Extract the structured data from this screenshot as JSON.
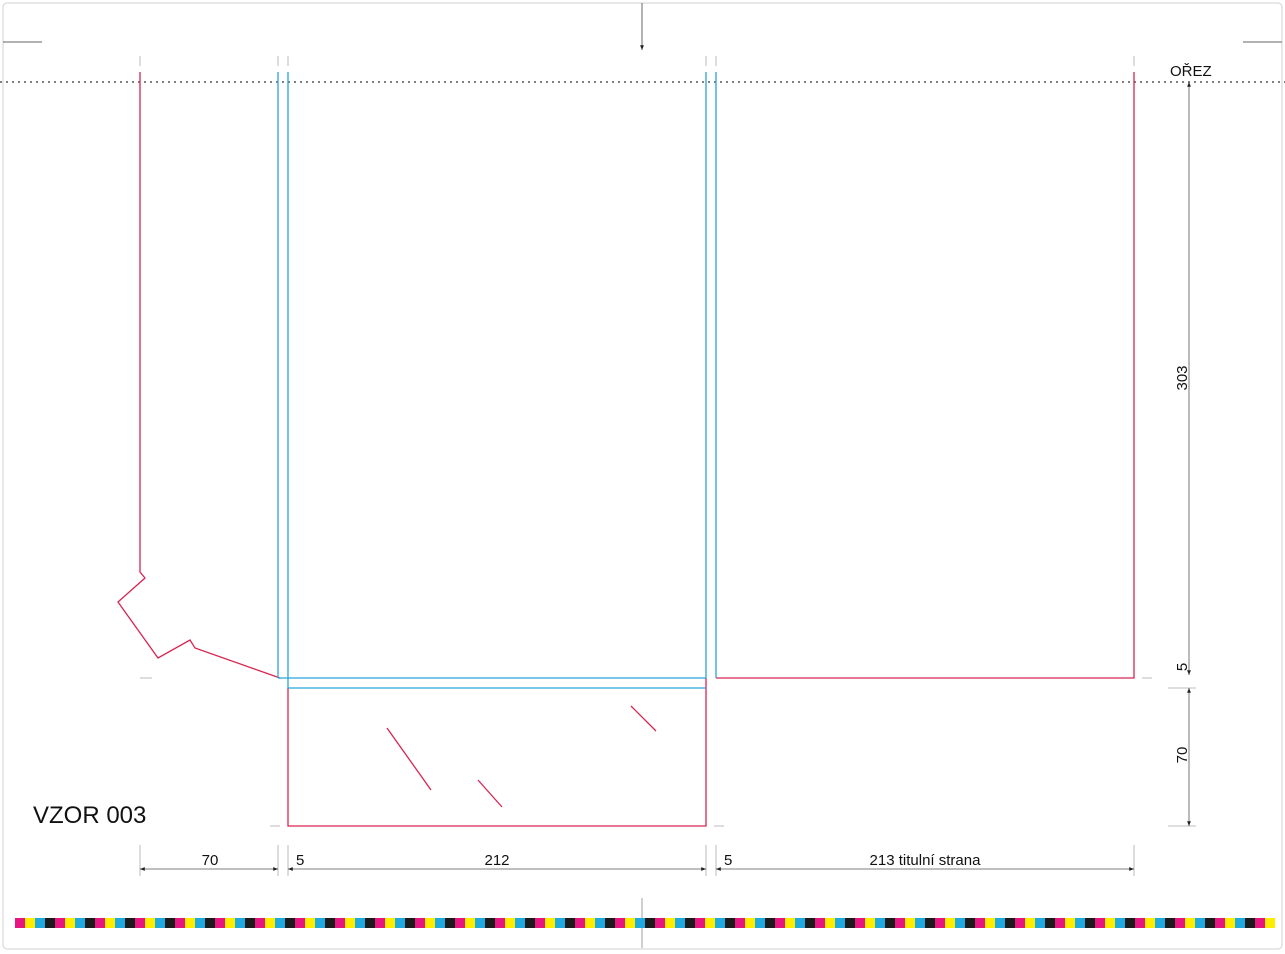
{
  "labels": {
    "trim": "OŘEZ",
    "template_name": "VZOR 003"
  },
  "dimensions": {
    "flap_width": "70",
    "spine_left": "5",
    "inner_width": "212",
    "spine_right": "5",
    "cover_width": "213  titulní strana",
    "height": "303",
    "gap": "5",
    "pocket_height": "70"
  },
  "colors": {
    "cut_line": "#d8254f",
    "fold_line": "#2aa3d9",
    "color_bar": [
      "#e6157f",
      "#ffed00",
      "#1ea9e1",
      "#1a1a1a"
    ]
  }
}
